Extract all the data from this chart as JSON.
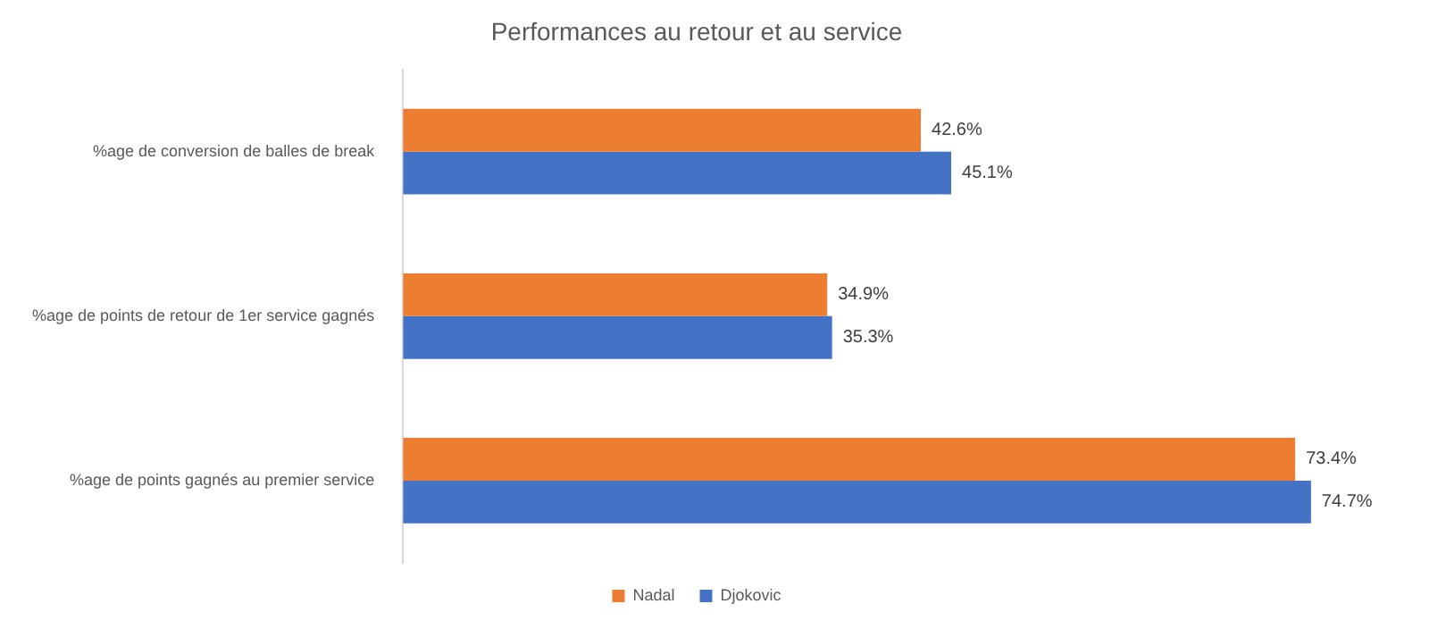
{
  "chart_data": {
    "type": "bar",
    "orientation": "horizontal",
    "title": "Performances au retour et au service",
    "categories": [
      "%age de conversion de balles de break",
      "%age de points de retour de 1er service gagnés",
      "%age de points gagnés au premier service"
    ],
    "series": [
      {
        "name": "Nadal",
        "color": "#ed7d31",
        "values": [
          42.6,
          34.9,
          73.4
        ],
        "value_labels": [
          "42.6%",
          "34.9%",
          "73.4%"
        ]
      },
      {
        "name": "Djokovic",
        "color": "#4472c4",
        "values": [
          45.1,
          35.3,
          74.7
        ],
        "value_labels": [
          "45.1%",
          "35.3%",
          "74.7%"
        ]
      }
    ],
    "tick_labels": "y",
    "grid": false,
    "legend": "bottom"
  }
}
